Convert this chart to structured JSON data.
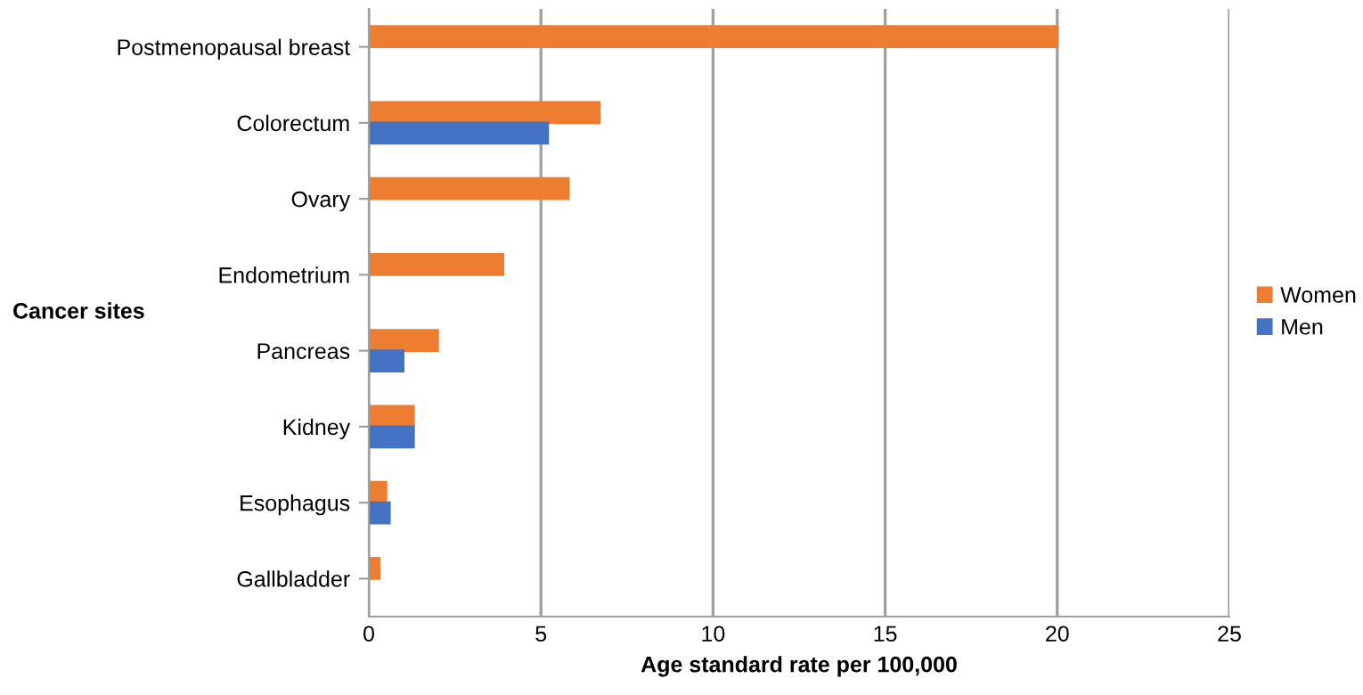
{
  "chart_data": {
    "type": "bar",
    "orientation": "horizontal",
    "xlabel": "Age standard rate per 100,000",
    "ylabel": "Cancer sites",
    "categories": [
      "Postmenopausal breast",
      "Colorectum",
      "Ovary",
      "Endometrium",
      "Pancreas",
      "Kidney",
      "Esophagus",
      "Gallbladder"
    ],
    "series": [
      {
        "name": "Women",
        "color": "#ed7d31",
        "values": [
          20.0,
          6.7,
          5.8,
          3.9,
          2.0,
          1.3,
          0.5,
          0.3
        ]
      },
      {
        "name": "Men",
        "color": "#4472c4",
        "values": [
          null,
          5.2,
          null,
          null,
          1.0,
          1.3,
          0.6,
          null
        ]
      }
    ],
    "xlim": [
      0,
      25
    ],
    "xticks": [
      0,
      5,
      10,
      15,
      20,
      25
    ],
    "grid": "x",
    "legend": "right"
  }
}
